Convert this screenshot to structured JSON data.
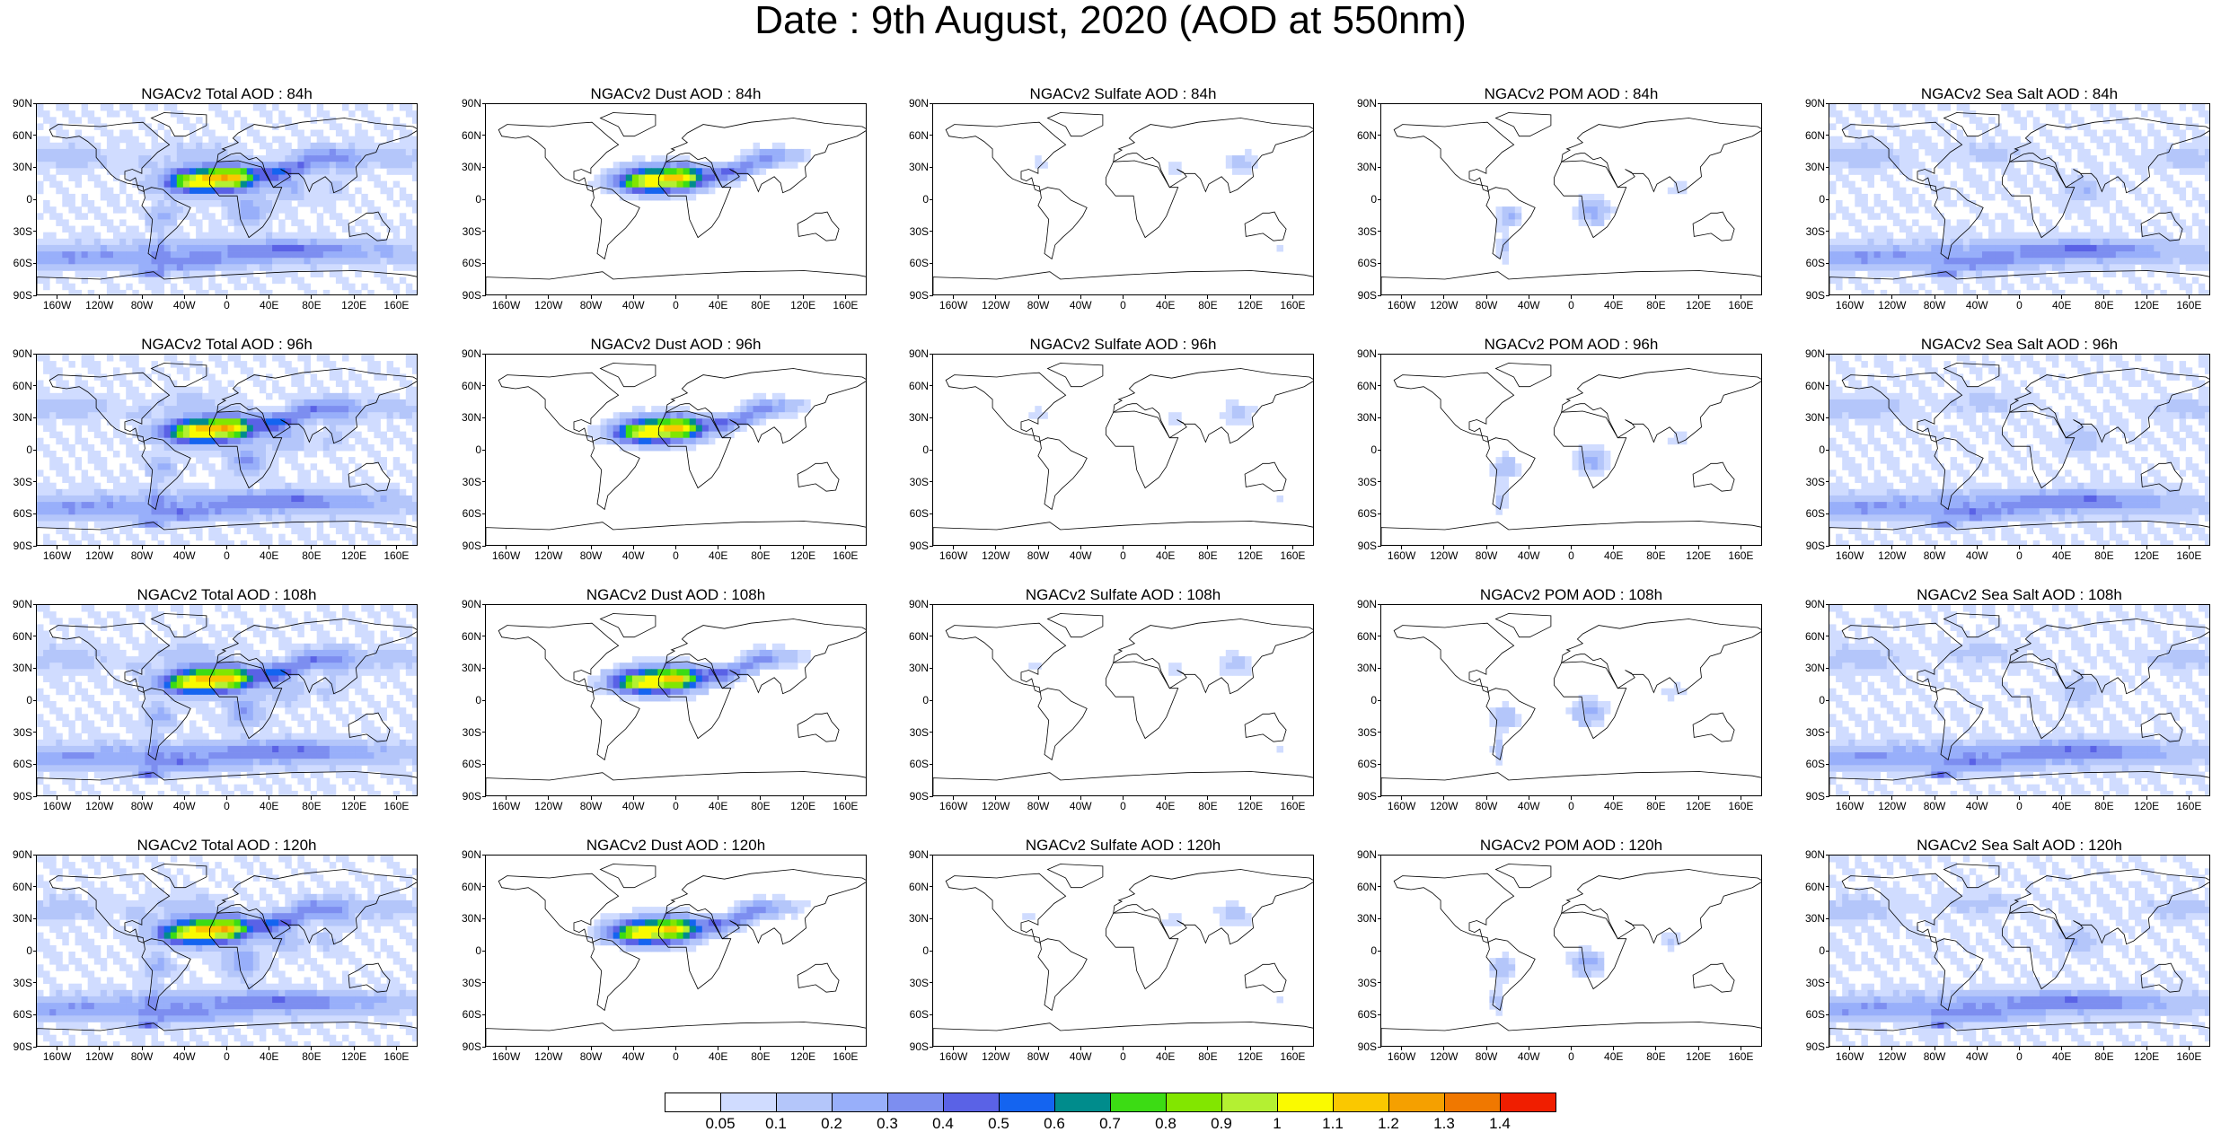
{
  "title": "Date : 9th August, 2020 (AOD at 550nm)",
  "lat_labels": [
    "90N",
    "60N",
    "30N",
    "0",
    "30S",
    "60S",
    "90S"
  ],
  "lon_labels": [
    "160W",
    "120W",
    "80W",
    "40W",
    "0",
    "40E",
    "80E",
    "120E",
    "160E"
  ],
  "panels": [
    {
      "title": "NGACv2 Total AOD : 84h",
      "variable": "total",
      "forecast_hour": 84
    },
    {
      "title": "NGACv2 Dust AOD : 84h",
      "variable": "dust",
      "forecast_hour": 84
    },
    {
      "title": "NGACv2 Sulfate AOD : 84h",
      "variable": "sulfate",
      "forecast_hour": 84
    },
    {
      "title": "NGACv2 POM AOD : 84h",
      "variable": "pom",
      "forecast_hour": 84
    },
    {
      "title": "NGACv2 Sea Salt AOD : 84h",
      "variable": "seasalt",
      "forecast_hour": 84
    },
    {
      "title": "NGACv2 Total AOD : 96h",
      "variable": "total",
      "forecast_hour": 96
    },
    {
      "title": "NGACv2 Dust AOD : 96h",
      "variable": "dust",
      "forecast_hour": 96
    },
    {
      "title": "NGACv2 Sulfate AOD : 96h",
      "variable": "sulfate",
      "forecast_hour": 96
    },
    {
      "title": "NGACv2 POM AOD : 96h",
      "variable": "pom",
      "forecast_hour": 96
    },
    {
      "title": "NGACv2 Sea Salt AOD : 96h",
      "variable": "seasalt",
      "forecast_hour": 96
    },
    {
      "title": "NGACv2 Total AOD : 108h",
      "variable": "total",
      "forecast_hour": 108
    },
    {
      "title": "NGACv2 Dust AOD : 108h",
      "variable": "dust",
      "forecast_hour": 108
    },
    {
      "title": "NGACv2 Sulfate AOD : 108h",
      "variable": "sulfate",
      "forecast_hour": 108
    },
    {
      "title": "NGACv2 POM AOD : 108h",
      "variable": "pom",
      "forecast_hour": 108
    },
    {
      "title": "NGACv2 Sea Salt AOD : 108h",
      "variable": "seasalt",
      "forecast_hour": 108
    },
    {
      "title": "NGACv2 Total AOD : 120h",
      "variable": "total",
      "forecast_hour": 120
    },
    {
      "title": "NGACv2 Dust AOD : 120h",
      "variable": "dust",
      "forecast_hour": 120
    },
    {
      "title": "NGACv2 Sulfate AOD : 120h",
      "variable": "sulfate",
      "forecast_hour": 120
    },
    {
      "title": "NGACv2 POM AOD : 120h",
      "variable": "pom",
      "forecast_hour": 120
    },
    {
      "title": "NGACv2 Sea Salt  AOD : 120h",
      "variable": "seasalt",
      "forecast_hour": 120
    }
  ],
  "colorbar": {
    "labels": [
      "0.05",
      "0.1",
      "0.2",
      "0.3",
      "0.4",
      "0.5",
      "0.6",
      "0.7",
      "0.8",
      "0.9",
      "1",
      "1.1",
      "1.2",
      "1.3",
      "1.4"
    ],
    "colors": [
      "#ffffff",
      "#d0dcff",
      "#b4c6fa",
      "#98affa",
      "#7d8ef0",
      "#5a62e6",
      "#1464f0",
      "#008c8c",
      "#3cdc14",
      "#82e600",
      "#b4f032",
      "#fafa00",
      "#fac800",
      "#f5a000",
      "#f07800",
      "#f01e00"
    ]
  }
}
